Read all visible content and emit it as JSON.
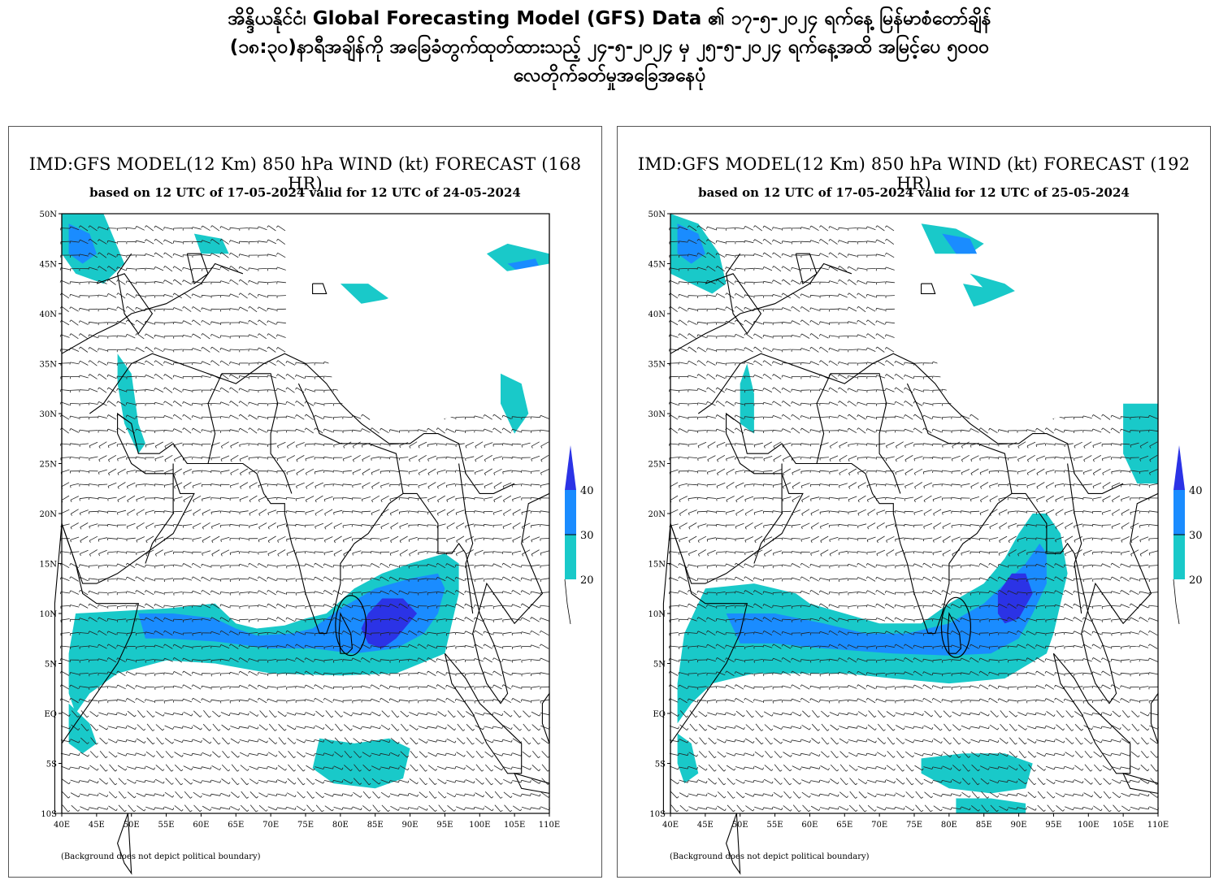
{
  "header": {
    "lines": [
      "အိန္ဒိယနိုင်ငံ၊ Global Forecasting Model (GFS) Data ၏ ၁၇-၅-၂၀၂၄ ရက်နေ့ မြန်မာစံတော်ချိန်",
      "(၁၈:၃၀)နာရီအချိန်ကို အခြေခံတွက်ထုတ်ထားသည့် ၂၄-၅-၂၀၂၄ မှ ၂၅-၅-၂၀၂၄ ရက်နေ့အထိ အမြင့်ပေ ၅၀၀၀",
      "လေတိုက်ခတ်မှုအခြေအနေပုံ"
    ]
  },
  "maps": [
    {
      "title": "IMD:GFS MODEL(12 Km) 850 hPa WIND (kt) FORECAST (168 HR)",
      "subtitle": "based on 12 UTC of 17-05-2024 valid for 12 UTC of 24-05-2024",
      "footnote": "(Background does not depict political boundary)"
    },
    {
      "title": "IMD:GFS MODEL(12 Km) 850 hPa WIND (kt) FORECAST (192 HR)",
      "subtitle": "based on 12 UTC of 17-05-2024 valid for 12 UTC of 25-05-2024",
      "footnote": "(Background does not depict political boundary)"
    }
  ],
  "axes": {
    "lat_labels": [
      "50N",
      "45N",
      "40N",
      "35N",
      "30N",
      "25N",
      "20N",
      "15N",
      "10N",
      "5N",
      "EQ",
      "5S",
      "10S"
    ],
    "lon_labels": [
      "40E",
      "45E",
      "50E",
      "55E",
      "60E",
      "65E",
      "70E",
      "75E",
      "80E",
      "85E",
      "90E",
      "95E",
      "100E",
      "105E",
      "110E"
    ],
    "lat_range": [
      -10,
      50
    ],
    "lon_range": [
      40,
      110
    ]
  },
  "legend": {
    "ticks": [
      "20",
      "30",
      "40"
    ],
    "colors": {
      "c20": "#19c9c9",
      "c30": "#1a8cff",
      "c40": "#2b33e6"
    }
  },
  "colors": {
    "land": "#ffffff",
    "ocean_barb": "#222222",
    "coast": "#000000"
  }
}
